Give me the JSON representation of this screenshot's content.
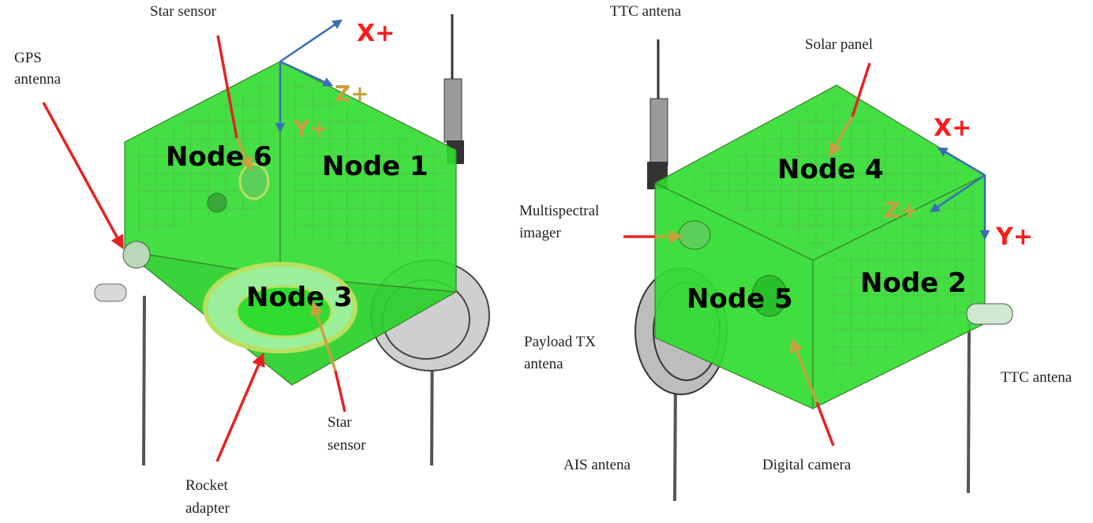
{
  "left_view": {
    "nodes": [
      "Node 6",
      "Node 1",
      "Node 3"
    ],
    "labels": {
      "star_sensor_top": "Star sensor",
      "gps_antenna_line1": "GPS",
      "gps_antenna_line2": "antenna",
      "star_sensor_bottom_line1": "Star",
      "star_sensor_bottom_line2": "sensor",
      "rocket_adapter_line1": "Rocket",
      "rocket_adapter_line2": "adapter"
    },
    "axes": {
      "x": "X+",
      "z": "Z+",
      "y": "Y+"
    }
  },
  "right_view": {
    "nodes": [
      "Node 4",
      "Node 5",
      "Node 2"
    ],
    "labels": {
      "ttc_antena_top": "TTC antena",
      "solar_panel": "Solar panel",
      "multispectral_line1": "Multispectral",
      "multispectral_line2": "imager",
      "payload_tx_line1": "Payload TX",
      "payload_tx_line2": "antena",
      "ttc_antena_right": "TTC antena",
      "ais_antena": "AIS antena",
      "digital_camera": "Digital camera"
    },
    "axes": {
      "x": "X+",
      "z": "Z+",
      "y": "Y+"
    }
  },
  "colors": {
    "face_green": "#2fdc2f",
    "arrow_red": "#e52222",
    "arrow_orange": "#c8a040",
    "axis_blue": "#3a6db5"
  }
}
